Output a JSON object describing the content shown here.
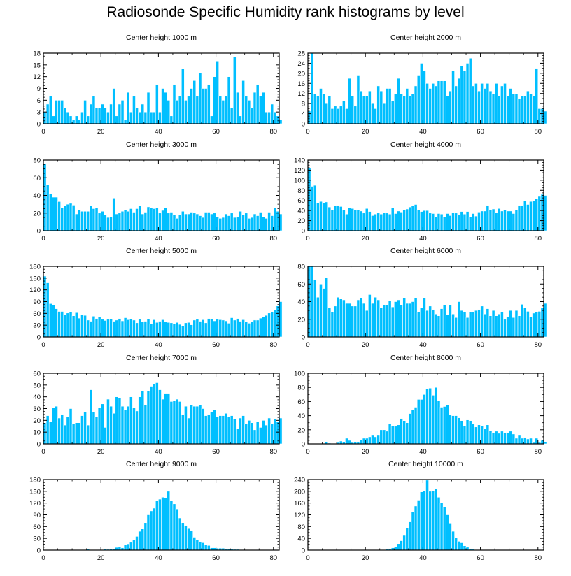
{
  "title": "Radiosonde Specific Humidity rank histograms by level",
  "colors": {
    "bar": "#00bfff",
    "bar_edge": "#ffffff",
    "axis": "#000000"
  },
  "chart_data": [
    {
      "type": "bar",
      "title": "Center height 1000 m",
      "xlim": [
        0,
        82
      ],
      "ylim": [
        0,
        18
      ],
      "xticks": [
        0,
        20,
        40,
        60,
        80
      ],
      "yticks": [
        0,
        3,
        6,
        9,
        12,
        15,
        18
      ],
      "values": [
        3,
        5,
        7,
        2,
        6,
        6,
        6,
        4,
        3,
        2,
        1,
        2,
        1,
        3,
        6,
        2,
        5,
        7,
        4,
        4,
        5,
        4,
        3,
        5,
        9,
        2,
        5,
        6,
        1,
        8,
        3,
        7,
        4,
        3,
        5,
        3,
        8,
        3,
        3,
        10,
        3,
        9,
        8,
        6,
        2,
        10,
        6,
        7,
        14,
        6,
        7,
        9,
        11,
        7,
        13,
        9,
        9,
        10,
        2,
        12,
        16,
        7,
        6,
        7,
        12,
        4,
        17,
        8,
        2,
        11,
        7,
        6,
        4,
        8,
        10,
        7,
        8,
        3,
        3,
        5,
        3,
        2,
        1
      ],
      "xlabel": "",
      "ylabel": ""
    },
    {
      "type": "bar",
      "title": "Center height 2000 m",
      "xlim": [
        0,
        82
      ],
      "ylim": [
        0,
        28
      ],
      "xticks": [
        0,
        20,
        40,
        60,
        80
      ],
      "yticks": [
        0,
        4,
        8,
        12,
        16,
        20,
        24,
        28
      ],
      "values": [
        5,
        28,
        12,
        11,
        14,
        12,
        8,
        11,
        6,
        7,
        6,
        7,
        9,
        6,
        18,
        11,
        7,
        19,
        13,
        11,
        11,
        13,
        8,
        6,
        15,
        13,
        8,
        14,
        14,
        9,
        12,
        18,
        12,
        11,
        14,
        11,
        12,
        15,
        19,
        24,
        21,
        16,
        14,
        16,
        15,
        17,
        17,
        17,
        11,
        13,
        21,
        15,
        18,
        23,
        21,
        24,
        26,
        15,
        16,
        13,
        16,
        14,
        16,
        13,
        12,
        16,
        11,
        15,
        16,
        11,
        14,
        12,
        12,
        10,
        11,
        11,
        13,
        12,
        11,
        22,
        6,
        6,
        5
      ],
      "xlabel": "",
      "ylabel": ""
    },
    {
      "type": "bar",
      "title": "Center height 3000 m",
      "xlim": [
        0,
        82
      ],
      "ylim": [
        0,
        80
      ],
      "xticks": [
        0,
        20,
        40,
        60,
        80
      ],
      "yticks": [
        0,
        20,
        40,
        60,
        80
      ],
      "values": [
        76,
        52,
        42,
        38,
        38,
        33,
        26,
        28,
        30,
        31,
        29,
        19,
        24,
        22,
        22,
        22,
        28,
        25,
        26,
        20,
        22,
        18,
        15,
        16,
        37,
        19,
        20,
        22,
        24,
        22,
        25,
        21,
        25,
        28,
        19,
        21,
        27,
        26,
        25,
        26,
        20,
        23,
        26,
        20,
        21,
        18,
        14,
        18,
        22,
        19,
        19,
        21,
        20,
        19,
        17,
        15,
        21,
        21,
        19,
        20,
        16,
        14,
        15,
        19,
        17,
        20,
        15,
        16,
        22,
        18,
        20,
        14,
        15,
        19,
        17,
        21,
        16,
        14,
        21,
        17,
        26,
        22,
        19
      ],
      "xlabel": "",
      "ylabel": ""
    },
    {
      "type": "bar",
      "title": "Center height 4000 m",
      "xlim": [
        0,
        82
      ],
      "ylim": [
        0,
        140
      ],
      "xticks": [
        0,
        20,
        40,
        60,
        80
      ],
      "yticks": [
        0,
        20,
        40,
        60,
        80,
        100,
        120,
        140
      ],
      "values": [
        125,
        88,
        90,
        55,
        58,
        55,
        57,
        47,
        41,
        49,
        50,
        48,
        41,
        33,
        46,
        44,
        41,
        42,
        39,
        35,
        44,
        38,
        30,
        33,
        35,
        33,
        36,
        35,
        33,
        45,
        34,
        39,
        37,
        41,
        43,
        47,
        49,
        52,
        41,
        38,
        40,
        40,
        35,
        34,
        27,
        34,
        33,
        28,
        34,
        30,
        36,
        35,
        32,
        38,
        33,
        38,
        27,
        34,
        29,
        37,
        39,
        39,
        50,
        41,
        43,
        36,
        44,
        39,
        42,
        39,
        39,
        34,
        41,
        50,
        50,
        60,
        52,
        58,
        60,
        63,
        68,
        72,
        70
      ],
      "xlabel": "",
      "ylabel": ""
    },
    {
      "type": "bar",
      "title": "Center height 5000 m",
      "xlim": [
        0,
        82
      ],
      "ylim": [
        0,
        180
      ],
      "xticks": [
        0,
        20,
        40,
        60,
        80
      ],
      "yticks": [
        0,
        30,
        60,
        90,
        120,
        150,
        180
      ],
      "values": [
        155,
        138,
        85,
        81,
        72,
        65,
        65,
        57,
        61,
        63,
        54,
        62,
        48,
        56,
        55,
        43,
        40,
        53,
        47,
        51,
        45,
        42,
        45,
        46,
        40,
        43,
        47,
        41,
        49,
        44,
        46,
        43,
        36,
        45,
        38,
        40,
        46,
        33,
        44,
        37,
        40,
        44,
        38,
        37,
        36,
        34,
        37,
        32,
        29,
        36,
        37,
        31,
        43,
        45,
        40,
        44,
        36,
        47,
        46,
        41,
        45,
        44,
        43,
        41,
        35,
        49,
        43,
        47,
        40,
        44,
        39,
        35,
        38,
        43,
        43,
        48,
        52,
        55,
        61,
        64,
        70,
        79,
        90
      ],
      "xlabel": "",
      "ylabel": ""
    },
    {
      "type": "bar",
      "title": "Center height 6000 m",
      "xlim": [
        0,
        82
      ],
      "ylim": [
        0,
        80
      ],
      "xticks": [
        0,
        20,
        40,
        60,
        80
      ],
      "yticks": [
        0,
        20,
        40,
        60,
        80
      ],
      "values": [
        80,
        80,
        65,
        45,
        60,
        55,
        67,
        33,
        28,
        35,
        45,
        43,
        42,
        38,
        38,
        35,
        35,
        42,
        44,
        38,
        30,
        48,
        38,
        45,
        42,
        33,
        36,
        36,
        41,
        34,
        40,
        42,
        36,
        44,
        38,
        38,
        40,
        44,
        28,
        33,
        44,
        30,
        35,
        31,
        26,
        24,
        32,
        36,
        25,
        36,
        26,
        22,
        40,
        30,
        28,
        22,
        28,
        28,
        30,
        31,
        35,
        26,
        32,
        24,
        30,
        24,
        26,
        28,
        20,
        23,
        30,
        22,
        30,
        24,
        37,
        33,
        29,
        23,
        27,
        28,
        29,
        33,
        38
      ],
      "xlabel": "",
      "ylabel": ""
    },
    {
      "type": "bar",
      "title": "Center height 7000 m",
      "xlim": [
        0,
        82
      ],
      "ylim": [
        0,
        60
      ],
      "xticks": [
        0,
        20,
        40,
        60,
        80
      ],
      "yticks": [
        0,
        10,
        20,
        30,
        40,
        50,
        60
      ],
      "values": [
        18,
        24,
        19,
        31,
        32,
        22,
        25,
        16,
        23,
        30,
        17,
        18,
        18,
        24,
        27,
        16,
        46,
        27,
        23,
        31,
        34,
        14,
        38,
        32,
        26,
        40,
        39,
        32,
        29,
        32,
        40,
        31,
        28,
        40,
        45,
        33,
        45,
        49,
        51,
        52,
        46,
        38,
        43,
        43,
        36,
        37,
        38,
        36,
        25,
        32,
        22,
        33,
        32,
        32,
        33,
        30,
        24,
        25,
        27,
        29,
        23,
        24,
        24,
        26,
        23,
        24,
        21,
        13,
        22,
        24,
        17,
        20,
        18,
        12,
        19,
        14,
        20,
        16,
        22,
        17,
        21,
        19,
        22
      ],
      "xlabel": "",
      "ylabel": ""
    },
    {
      "type": "bar",
      "title": "Center height 8000 m",
      "xlim": [
        0,
        82
      ],
      "ylim": [
        0,
        100
      ],
      "xticks": [
        0,
        20,
        40,
        60,
        80
      ],
      "yticks": [
        0,
        20,
        40,
        60,
        80,
        100
      ],
      "values": [
        0,
        0,
        0,
        0,
        0,
        0,
        3,
        1,
        0,
        0,
        2,
        4,
        3,
        8,
        5,
        2,
        3,
        3,
        6,
        8,
        8,
        10,
        12,
        10,
        12,
        20,
        20,
        18,
        28,
        26,
        25,
        27,
        36,
        33,
        30,
        43,
        48,
        52,
        63,
        63,
        70,
        78,
        79,
        69,
        80,
        61,
        52,
        53,
        55,
        41,
        40,
        40,
        37,
        33,
        26,
        34,
        33,
        28,
        24,
        27,
        26,
        22,
        27,
        19,
        16,
        18,
        15,
        18,
        16,
        16,
        18,
        14,
        8,
        12,
        8,
        9,
        7,
        8,
        2,
        8,
        2,
        5,
        3
      ],
      "xlabel": "",
      "ylabel": ""
    },
    {
      "type": "bar",
      "title": "Center height 9000 m",
      "xlim": [
        0,
        82
      ],
      "ylim": [
        0,
        180
      ],
      "xticks": [
        0,
        20,
        40,
        60,
        80
      ],
      "yticks": [
        0,
        30,
        60,
        90,
        120,
        150,
        180
      ],
      "values": [
        0,
        0,
        0,
        0,
        0,
        0,
        0,
        0,
        0,
        0,
        0,
        0,
        0,
        0,
        0,
        3,
        0,
        0,
        0,
        1,
        0,
        3,
        2,
        3,
        3,
        7,
        8,
        6,
        13,
        16,
        20,
        26,
        35,
        48,
        54,
        70,
        90,
        100,
        107,
        127,
        130,
        135,
        134,
        150,
        126,
        118,
        105,
        82,
        70,
        63,
        55,
        50,
        33,
        27,
        22,
        19,
        13,
        12,
        6,
        6,
        5,
        5,
        5,
        3,
        4,
        3,
        2,
        2,
        1,
        1,
        0,
        0,
        1,
        0,
        1,
        0,
        0,
        0,
        0,
        0,
        1,
        0,
        0
      ],
      "xlabel": "",
      "ylabel": ""
    },
    {
      "type": "bar",
      "title": "Center height 10000 m",
      "xlim": [
        0,
        82
      ],
      "ylim": [
        0,
        240
      ],
      "xticks": [
        0,
        20,
        40,
        60,
        80
      ],
      "yticks": [
        0,
        40,
        80,
        120,
        160,
        200,
        240
      ],
      "values": [
        0,
        0,
        0,
        0,
        0,
        0,
        0,
        0,
        0,
        0,
        0,
        0,
        0,
        0,
        0,
        0,
        0,
        0,
        0,
        0,
        0,
        0,
        0,
        0,
        0,
        1,
        1,
        3,
        5,
        8,
        11,
        22,
        32,
        50,
        75,
        96,
        130,
        150,
        170,
        198,
        202,
        238,
        200,
        202,
        208,
        180,
        160,
        146,
        120,
        92,
        64,
        42,
        30,
        25,
        15,
        10,
        5,
        3,
        1,
        1,
        0,
        0,
        0,
        0,
        0,
        0,
        0,
        0,
        0,
        0,
        0,
        0,
        0,
        0,
        0,
        0,
        0,
        0,
        0,
        0,
        2,
        0,
        0
      ],
      "xlabel": "",
      "ylabel": ""
    }
  ]
}
